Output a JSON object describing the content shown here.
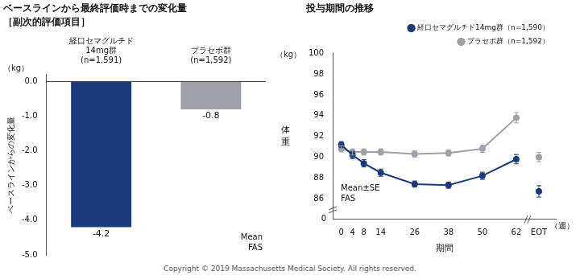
{
  "caption": "Copyright © 2019 Massachusetts Medical Society. All rights reserved.",
  "chart_data": [
    {
      "type": "bar",
      "title": "ベースラインから最終評価時までの変化量",
      "subtitle": "［副次的評価項目］",
      "categories": [
        [
          "経口セマグルチド",
          "14mg群",
          "(n=1,591)"
        ],
        [
          "プラセボ群",
          "(n=1,592)"
        ]
      ],
      "values": [
        -4.2,
        -0.8
      ],
      "colors": [
        "#1a3a7c",
        "#a0a0a8"
      ],
      "data_labels": true,
      "ylabel": "ベースラインからの変化量",
      "ylabel_unit": "（kg）",
      "ylim": [
        -5.0,
        0.2
      ],
      "yticks": [
        {
          "value": 0.0,
          "label": "0.0"
        },
        {
          "value": -1.0,
          "label": "-1.0"
        },
        {
          "value": -2.0,
          "label": "-2.0"
        },
        {
          "value": -3.0,
          "label": "-3.0"
        },
        {
          "value": -4.0,
          "label": "-4.0"
        },
        {
          "value": -5.0,
          "label": "-5.0"
        }
      ],
      "annotations": [
        "Mean",
        "FAS"
      ],
      "grid": false
    },
    {
      "type": "line",
      "title": "投与期間の推移",
      "x": [
        0,
        4,
        8,
        14,
        26,
        38,
        50,
        62
      ],
      "xlim": [
        -3,
        76
      ],
      "xticks": [
        0,
        4,
        8,
        14,
        26,
        38,
        50,
        62,
        {
          "value": 70,
          "label": "EOT"
        }
      ],
      "xlabel": "期間",
      "xlabel_suffix": "（週）",
      "ylabel": [
        "体",
        "重"
      ],
      "ylabel_unit": "（kg）",
      "ylim": [
        84,
        100
      ],
      "yticks": [
        86,
        88,
        90,
        92,
        94,
        96,
        98,
        100
      ],
      "ybreak_label": "0",
      "series": [
        {
          "name": "経口セマグルチド14mg群（n=1,590）",
          "color": "#1a3a7c",
          "marker": "circle",
          "values": [
            91.2,
            90.2,
            89.4,
            88.5,
            87.4,
            87.3,
            88.2,
            89.8
          ],
          "errors": [
            0.3,
            0.35,
            0.35,
            0.35,
            0.3,
            0.3,
            0.35,
            0.45
          ],
          "end_point": {
            "x": 70,
            "value": 86.7,
            "error": 0.55
          }
        },
        {
          "name": "プラセボ群（n=1,592）",
          "color": "#a0a0a8",
          "marker": "circle",
          "values": [
            90.8,
            90.5,
            90.5,
            90.5,
            90.3,
            90.4,
            90.8,
            93.8
          ],
          "errors": [
            0.3,
            0.3,
            0.3,
            0.3,
            0.3,
            0.3,
            0.35,
            0.5
          ],
          "end_point": {
            "x": 70,
            "value": 90.0,
            "error": 0.45
          }
        }
      ],
      "annotations": [
        "Mean±SE",
        "FAS"
      ],
      "legend": "upper right",
      "grid": false
    }
  ]
}
